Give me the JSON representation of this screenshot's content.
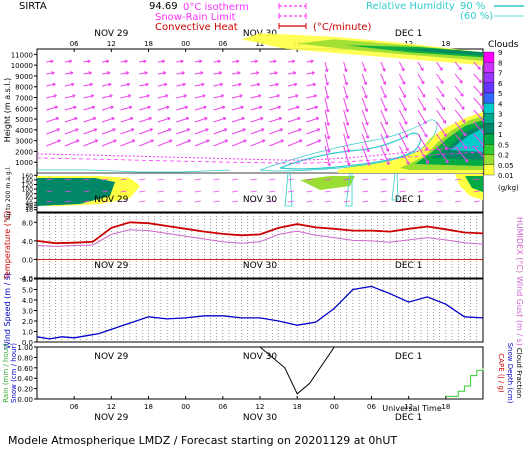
{
  "header": {
    "station": "SIRTA",
    "station_value": "94.69",
    "legend_left": [
      {
        "label": "0°C isotherm",
        "style": "dashed",
        "color": "#ff33ff"
      },
      {
        "label": "Snow-Rain Limit",
        "style": "dashed",
        "color": "#ff33ff"
      },
      {
        "label": "Convective Heat",
        "style": "solid",
        "color": "#cc0000",
        "unit": "(°C/minute)"
      }
    ],
    "legend_right": {
      "label": "Relative Humidity",
      "values": [
        "90 %",
        "(60 %)"
      ],
      "color": "#33cccc"
    }
  },
  "footer": {
    "text": "Modele Atmospherique LMDZ / Forecast starting on 20201129 at 0hUT",
    "xlabel": "Universal Time"
  },
  "colorbar": {
    "title": "Clouds",
    "unit": "(g/kg)",
    "ticks": [
      "9",
      "8",
      "7",
      "6",
      "5",
      "4",
      "3",
      "2",
      "1",
      "0.5",
      "0.2",
      "0.05",
      "0.01"
    ],
    "colors": [
      "#ff00ff",
      "#cc33ff",
      "#9933ff",
      "#6633ff",
      "#3366ff",
      "#00cccc",
      "#00aa88",
      "#008866",
      "#00aa44",
      "#33cc33",
      "#99dd33",
      "#ffff44"
    ]
  },
  "chart_data": [
    {
      "type": "heatmap",
      "name": "clouds-winds",
      "ylabel": "Height (m a.s.l.)",
      "ylabel_low": "Up to 200 m a.g.l.",
      "yticks_upper": [
        1000,
        2000,
        3000,
        4000,
        5000,
        6000,
        7000,
        8000,
        9000,
        10000,
        11000
      ],
      "yticks_lower": [
        10,
        20,
        30,
        40,
        60,
        80,
        100,
        120,
        140,
        160
      ],
      "x_top_ticks": [
        "06",
        "12",
        "18",
        "00",
        "06",
        "12",
        "18",
        "00",
        "06",
        "12",
        "18"
      ],
      "x_day_labels": [
        "NOV 29",
        "NOV 30",
        "DEC  1"
      ],
      "x_day_positions_h": [
        12,
        36,
        60
      ],
      "x_range_h": [
        0,
        72
      ]
    },
    {
      "type": "line",
      "name": "temperature",
      "ylabel": "Temperature (°C)",
      "ylabel_right": "HUMIDEX (°C)",
      "yticks": [
        "-4.0",
        "0.0",
        "4.0",
        "8.0"
      ],
      "ylim": [
        -4,
        10
      ],
      "x_h": [
        0,
        3,
        6,
        9,
        12,
        15,
        18,
        21,
        24,
        27,
        30,
        33,
        36,
        39,
        42,
        45,
        48,
        51,
        54,
        57,
        60,
        63,
        66,
        69,
        72
      ],
      "series": [
        {
          "values": [
            4.0,
            3.5,
            3.6,
            3.8,
            6.8,
            8.0,
            7.8,
            7.2,
            6.6,
            6.0,
            5.5,
            5.2,
            5.4,
            6.8,
            7.6,
            6.9,
            6.6,
            6.2,
            6.2,
            6.0,
            6.6,
            7.1,
            6.5,
            5.8,
            5.6
          ],
          "color": "#cc0000"
        },
        {
          "values": [
            3.0,
            2.8,
            3.0,
            3.1,
            5.4,
            6.4,
            6.2,
            5.6,
            5.0,
            4.4,
            3.8,
            3.5,
            3.8,
            5.4,
            6.1,
            5.2,
            4.7,
            4.1,
            4.0,
            3.7,
            4.2,
            4.7,
            4.2,
            3.6,
            3.3
          ],
          "color": "#cc66cc"
        }
      ],
      "x_day_labels": [
        "NOV 29",
        "NOV 30",
        "DEC  1"
      ]
    },
    {
      "type": "line",
      "name": "wind",
      "ylabel": "Wind Speed (m / s)",
      "ylabel_right": "Wind Gust (m / s)",
      "yticks": [
        "0.0",
        "1.0",
        "2.0",
        "3.0",
        "4.0",
        "5.0",
        "6.0"
      ],
      "ylim": [
        0,
        6
      ],
      "x_h": [
        0,
        2,
        4,
        6,
        8,
        10,
        12,
        15,
        18,
        21,
        24,
        27,
        30,
        33,
        36,
        39,
        42,
        45,
        48,
        51,
        54,
        57,
        60,
        63,
        66,
        69,
        72
      ],
      "series": [
        {
          "values": [
            0.5,
            0.3,
            0.5,
            0.4,
            0.6,
            0.8,
            1.2,
            1.8,
            2.4,
            2.2,
            2.3,
            2.5,
            2.5,
            2.3,
            2.3,
            2.0,
            1.6,
            1.9,
            3.2,
            5.0,
            5.3,
            4.6,
            3.8,
            4.3,
            3.6,
            2.4,
            2.3
          ],
          "color": "#0000cc"
        }
      ],
      "x_day_labels": [
        "NOV 29",
        "NOV 30",
        "DEC  1"
      ]
    },
    {
      "type": "line",
      "name": "precipitation",
      "ylabel": "Rain (mm / hour)",
      "ylabel2": "Snow (cm / hour)",
      "ylabel_right": "CAPE (J / g)",
      "ylabel_right2": "Snow Depth (cm)",
      "ylabel_right3": "Cloud Fraction",
      "yticks": [
        "0.00",
        "0.20",
        "0.40",
        "0.60",
        "0.80",
        "1.00"
      ],
      "ylim": [
        0,
        1.0
      ],
      "x_ticks_bottom": [
        "06",
        "12",
        "18",
        "00",
        "06",
        "12",
        "18",
        "00",
        "06",
        "12",
        "18"
      ],
      "x_day_labels": [
        "NOV 29",
        "NOV 30",
        "DEC  1"
      ],
      "series": [
        {
          "x_h": [
            36,
            40,
            42,
            44,
            48,
            60,
            72
          ],
          "values": [
            1.0,
            0.6,
            0.1,
            0.3,
            1.0,
            1.0,
            1.0
          ],
          "color": "#000000"
        },
        {
          "x_h": [
            66,
            67,
            68,
            69,
            70,
            71,
            72
          ],
          "values": [
            0.05,
            0.05,
            0.15,
            0.25,
            0.45,
            0.55,
            0.6
          ],
          "color": "#33cc33"
        }
      ]
    }
  ]
}
